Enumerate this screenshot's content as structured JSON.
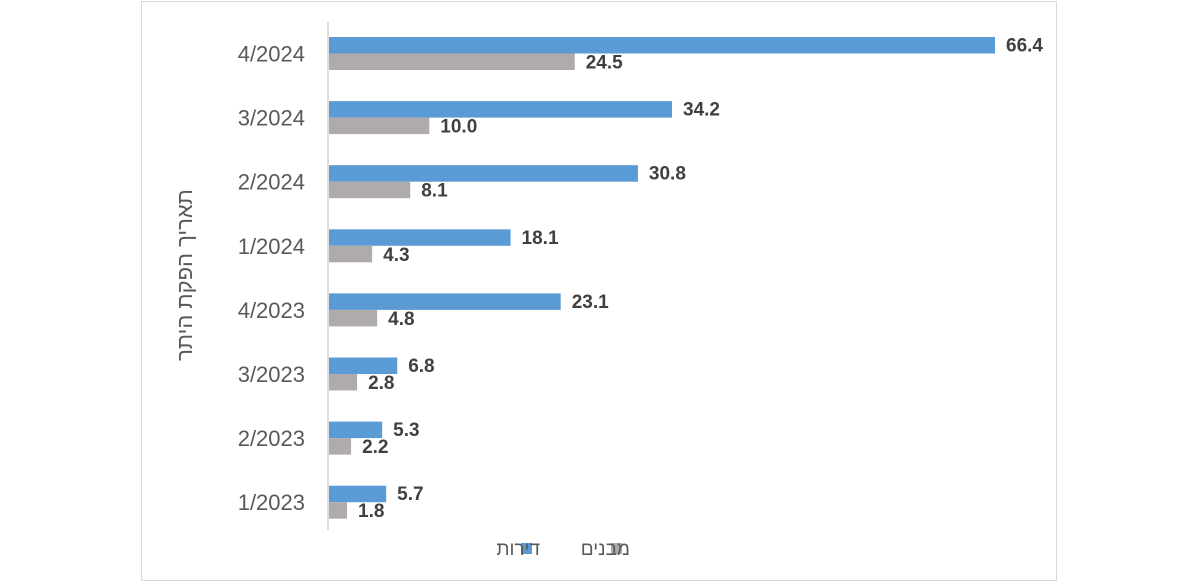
{
  "chart_data": {
    "type": "bar",
    "orientation": "horizontal",
    "categories": [
      "4/2024",
      "3/2024",
      "2/2024",
      "1/2024",
      "4/2023",
      "3/2023",
      "2/2023",
      "1/2023"
    ],
    "series": [
      {
        "name": "דירות",
        "color": "#5b9bd5",
        "values": [
          66.4,
          34.2,
          30.8,
          18.1,
          23.1,
          6.8,
          5.3,
          5.7
        ],
        "labels": [
          "66.4",
          "34.2",
          "30.8",
          "18.1",
          "23.1",
          "6.8",
          "5.3",
          "5.7"
        ]
      },
      {
        "name": "מבנים",
        "color": "#afabab",
        "values": [
          24.5,
          10.0,
          8.1,
          4.3,
          4.8,
          2.8,
          2.2,
          1.8
        ],
        "labels": [
          "24.5",
          "10.0",
          "8.1",
          "4.3",
          "4.8",
          "2.8",
          "2.2",
          "1.8"
        ]
      }
    ],
    "ylabel": "תאריך הפקת היתר",
    "xlim": [
      0,
      66.4
    ],
    "grid": false,
    "legend_position": "bottom"
  }
}
